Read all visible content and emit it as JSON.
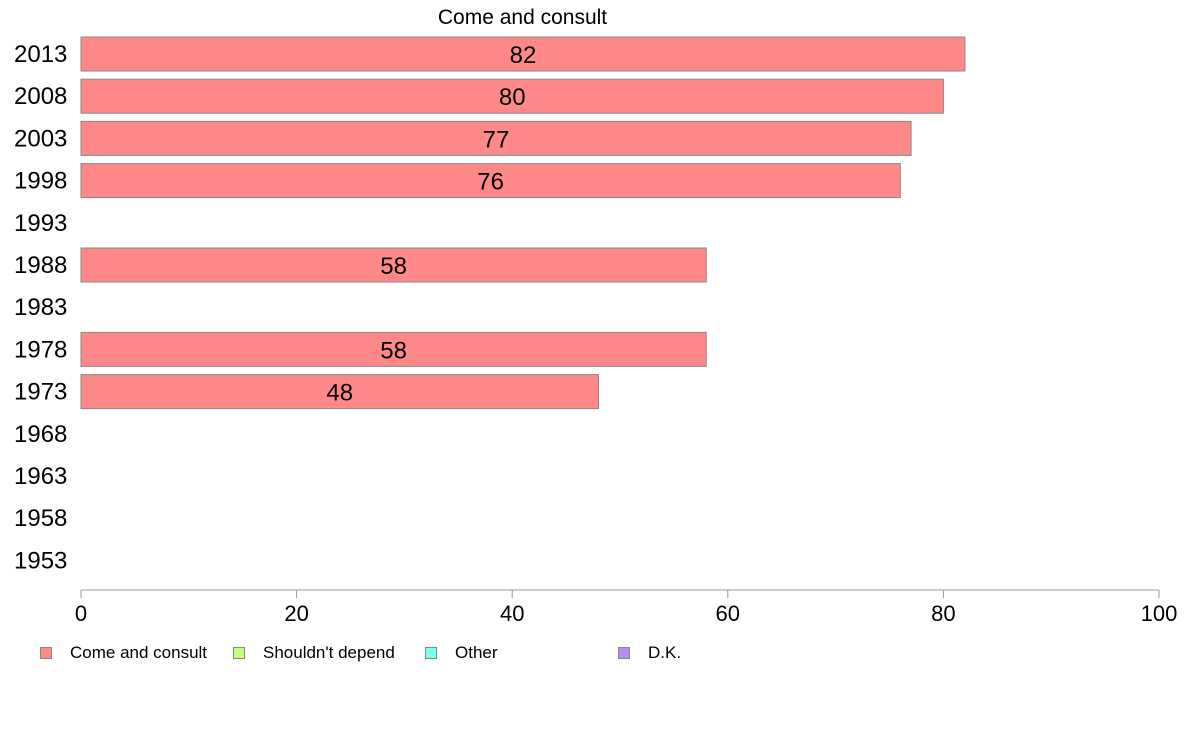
{
  "chart_data": {
    "type": "bar",
    "orientation": "horizontal",
    "title": "Come and consult",
    "categories": [
      "2013",
      "2008",
      "2003",
      "1998",
      "1993",
      "1988",
      "1983",
      "1978",
      "1973",
      "1968",
      "1963",
      "1958",
      "1953"
    ],
    "series": [
      {
        "name": "Come and consult",
        "values": [
          82,
          80,
          77,
          76,
          null,
          58,
          null,
          58,
          48,
          null,
          null,
          null,
          null
        ],
        "color": "#ff8888"
      }
    ],
    "data_labels": [
      "82",
      "80",
      "77",
      "76",
      "",
      "58",
      "",
      "58",
      "48",
      "",
      "",
      "",
      ""
    ],
    "xlim": [
      0,
      100
    ],
    "xticks": [
      0,
      20,
      40,
      60,
      80,
      100
    ],
    "xtick_labels": [
      "0",
      "20",
      "40",
      "60",
      "80",
      "100"
    ],
    "grid": false,
    "legend_position": "bottom",
    "legend": [
      {
        "label": "Come and consult",
        "color": "#ff8888"
      },
      {
        "label": "Shouldn't depend",
        "color": "#c6ff7a"
      },
      {
        "label": "Other",
        "color": "#7afff2"
      },
      {
        "label": "D.K.",
        "color": "#b98af7"
      }
    ]
  }
}
